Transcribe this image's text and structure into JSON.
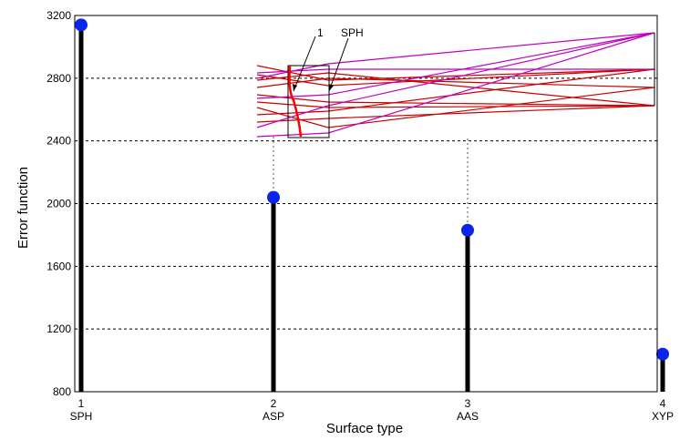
{
  "chart_data": {
    "type": "stem",
    "xlabel": "Surface type",
    "ylabel": "Error function",
    "ylim": [
      800,
      3200
    ],
    "yticks": [
      800,
      1200,
      1600,
      2000,
      2400,
      2800,
      3200
    ],
    "grid": "horizontal-dashed",
    "categories": [
      {
        "index": "1",
        "name": "SPH"
      },
      {
        "index": "2",
        "name": "ASP"
      },
      {
        "index": "3",
        "name": "AAS"
      },
      {
        "index": "4",
        "name": "XYP"
      }
    ],
    "values": [
      3140,
      2040,
      1830,
      1040
    ],
    "colors": {
      "stem": "#000000",
      "marker": "#0a24e8",
      "grid": "#000000"
    },
    "inset": {
      "labels": [
        "1",
        "SPH"
      ],
      "colors": {
        "rays_red": "#cc0000",
        "rays_magenta": "#c000c0",
        "lens": "#ff0000"
      }
    }
  }
}
